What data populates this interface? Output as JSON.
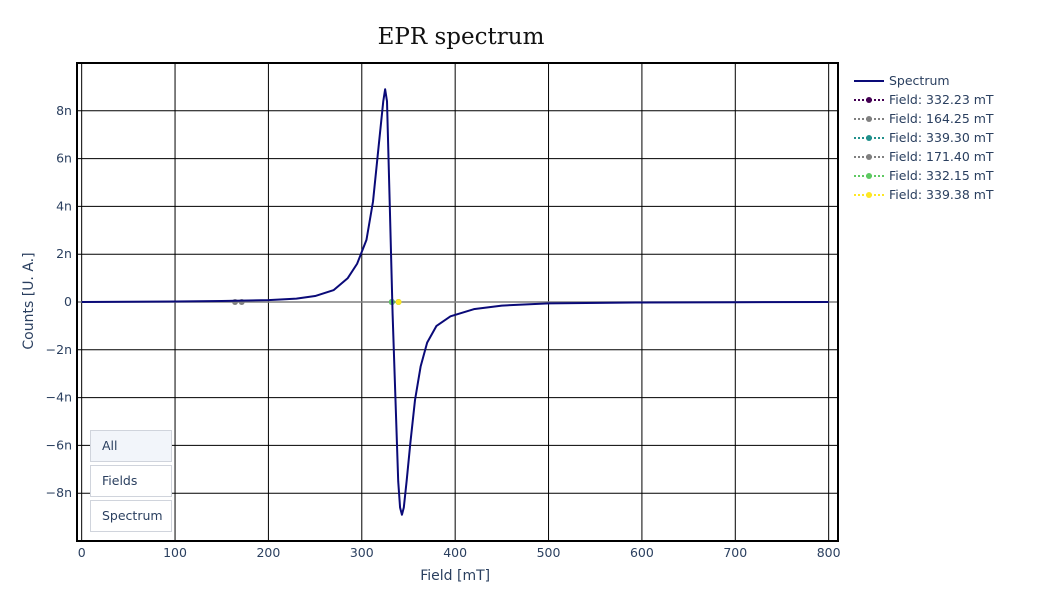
{
  "chart_data": {
    "type": "line",
    "title": "EPR spectrum",
    "xlabel": "Field [mT]",
    "ylabel": "Counts [U. A.]",
    "xlim": [
      -5,
      810
    ],
    "ylim": [
      -1e-08,
      1e-08
    ],
    "xticks": [
      0,
      100,
      200,
      300,
      400,
      500,
      600,
      700,
      800
    ],
    "xtick_labels": [
      "0",
      "100",
      "200",
      "300",
      "400",
      "500",
      "600",
      "700",
      "800"
    ],
    "yticks": [
      8e-09,
      6e-09,
      4e-09,
      2e-09,
      0,
      -2e-09,
      -4e-09,
      -6e-09,
      -8e-09
    ],
    "ytick_labels": [
      "8n",
      "6n",
      "4n",
      "2n",
      "0",
      "−2n",
      "−4n",
      "−6n",
      "−8n"
    ],
    "grid": true,
    "legend_position": "right",
    "series": [
      {
        "name": "Spectrum",
        "color": "#0a0a78",
        "mode": "line",
        "x": [
          0,
          50,
          100,
          150,
          200,
          230,
          250,
          270,
          285,
          295,
          305,
          312,
          318,
          323,
          325,
          327,
          330,
          333,
          336,
          339,
          341,
          343,
          345,
          348,
          352,
          357,
          363,
          370,
          380,
          395,
          420,
          450,
          500,
          600,
          700,
          800
        ],
        "y": [
          0,
          1e-11,
          2e-11,
          4e-11,
          8e-11,
          1.4e-10,
          2.5e-10,
          5e-10,
          1e-09,
          1.6e-09,
          2.6e-09,
          4.2e-09,
          6.5e-09,
          8.4e-09,
          8.9e-09,
          8.4e-09,
          4e-09,
          -5e-10,
          -4e-09,
          -7.5e-09,
          -8.6e-09,
          -8.9e-09,
          -8.6e-09,
          -7.5e-09,
          -5.9e-09,
          -4.1e-09,
          -2.7e-09,
          -1.7e-09,
          -1e-09,
          -6e-10,
          -3e-10,
          -1.5e-10,
          -6e-11,
          -2e-11,
          -1e-11,
          0
        ]
      },
      {
        "name": "Field: 332.23 mT",
        "color": "#440154",
        "mode": "lines+markers",
        "x": [
          332.23,
          332.23
        ],
        "y": [
          -1e-08,
          1e-08
        ]
      },
      {
        "name": "Field: 164.25 mT",
        "color": "#808080",
        "mode": "lines+markers",
        "x": [
          164.25,
          164.25
        ],
        "y": [
          -1e-08,
          1e-08
        ]
      },
      {
        "name": "Field: 339.30 mT",
        "color": "#21918c",
        "mode": "lines+markers",
        "x": [
          339.3,
          339.3
        ],
        "y": [
          -1e-08,
          1e-08
        ]
      },
      {
        "name": "Field: 171.40 mT",
        "color": "#808080",
        "mode": "lines+markers",
        "x": [
          171.4,
          171.4
        ],
        "y": [
          -1e-08,
          1e-08
        ]
      },
      {
        "name": "Field: 332.15 mT",
        "color": "#5ec962",
        "mode": "lines+markers",
        "x": [
          332.15,
          332.15
        ],
        "y": [
          -1e-08,
          1e-08
        ]
      },
      {
        "name": "Field: 339.38 mT",
        "color": "#fde725",
        "mode": "lines+markers",
        "x": [
          339.38,
          339.38
        ],
        "y": [
          -1e-08,
          1e-08
        ]
      }
    ]
  },
  "buttons": [
    {
      "label": "All",
      "active": true
    },
    {
      "label": "Fields",
      "active": false
    },
    {
      "label": "Spectrum",
      "active": false
    }
  ]
}
